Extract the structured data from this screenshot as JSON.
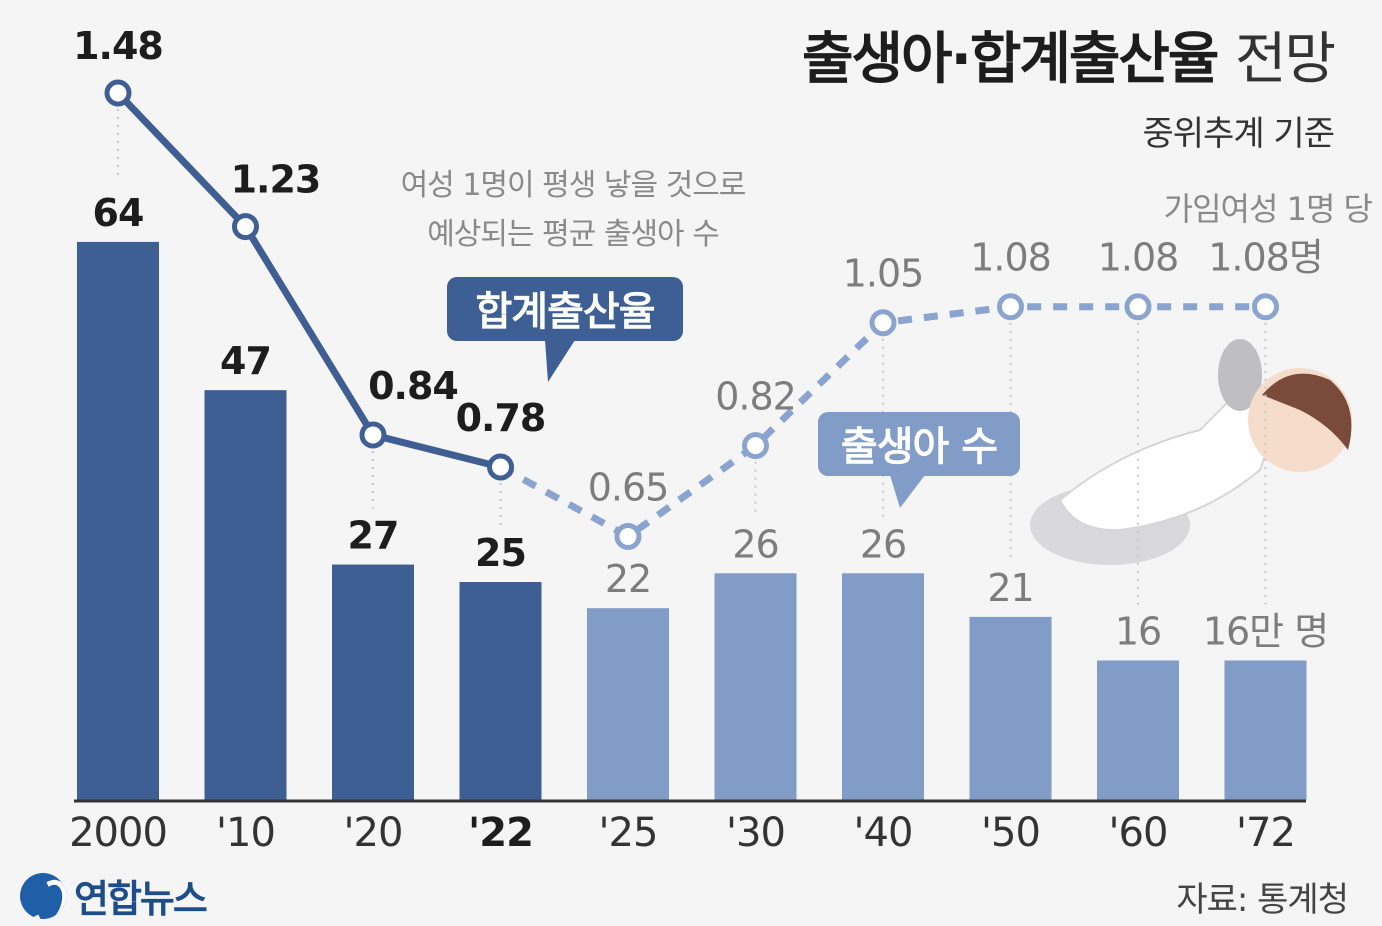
{
  "header": {
    "title": "출생아·합계출산율",
    "title_tail": "전망",
    "subtitle": "중위추계 기준"
  },
  "footer": {
    "source": "자료: 통계청",
    "logo_text": "연합뉴스"
  },
  "colors": {
    "actual_bar": "#3d5f93",
    "projected_bar": "#829cc8",
    "actual_line": "#3f5e93",
    "projected_line": "#8ba4cf",
    "axis": "#333333",
    "callout_dark": "#3d5f93",
    "callout_light": "#829cc8"
  },
  "chart_data": {
    "type": "bar",
    "title": "출생아·합계출산율 전망",
    "subtitle": "중위추계 기준",
    "categories": [
      "2000",
      "'10",
      "'20",
      "'22",
      "'25",
      "'30",
      "'40",
      "'50",
      "'60",
      "'72"
    ],
    "emphasized_category": "'22",
    "last_actual_index": 3,
    "series": [
      {
        "name": "출생아 수",
        "kind": "bar",
        "unit": "만 명",
        "values": [
          64,
          47,
          27,
          25,
          22,
          26,
          26,
          21,
          16,
          16
        ],
        "labels": [
          "64",
          "47",
          "27",
          "25",
          "22",
          "26",
          "26",
          "21",
          "16",
          "16만 명"
        ]
      },
      {
        "name": "합계출산율",
        "kind": "line",
        "unit": "명",
        "values": [
          1.48,
          1.23,
          0.84,
          0.78,
          0.65,
          0.82,
          1.05,
          1.08,
          1.08,
          1.08
        ],
        "labels": [
          "1.48",
          "1.23",
          "0.84",
          "0.78",
          "0.65",
          "0.82",
          "1.05",
          "1.08",
          "1.08",
          "1.08명"
        ]
      }
    ],
    "ylim": [
      0,
      70
    ],
    "y2lim": [
      0,
      1.6
    ],
    "grid": false,
    "annotations": {
      "definition_line1": "여성 1명이 평생 낳을 것으로",
      "definition_line2": "예상되는 평균 출생아 수",
      "rate_callout": "합계출산율",
      "births_callout": "출생아 수",
      "per_woman_note": "가임여성 1명 당"
    }
  }
}
